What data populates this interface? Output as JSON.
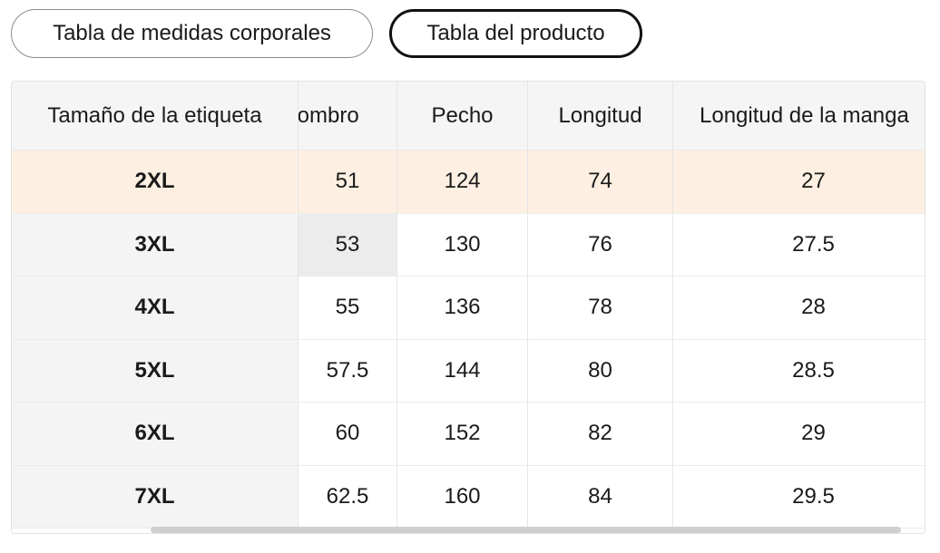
{
  "tabs": {
    "body_chart": "Tabla de medidas corporales",
    "product_chart": "Tabla del producto",
    "active": "product_chart"
  },
  "table": {
    "headers": [
      "Tamaño de la etiqueta",
      "Hombro",
      "Pecho",
      "Longitud",
      "Longitud de la manga"
    ],
    "header_visible": [
      "Tamaño de la etiqueta",
      "Iombro",
      "Pecho",
      "Longitud",
      "Longitud de la manga"
    ],
    "rows": [
      [
        "2XL",
        "51",
        "124",
        "74",
        "27"
      ],
      [
        "3XL",
        "53",
        "130",
        "76",
        "27.5"
      ],
      [
        "4XL",
        "55",
        "136",
        "78",
        "28"
      ],
      [
        "5XL",
        "57.5",
        "144",
        "80",
        "28.5"
      ],
      [
        "6XL",
        "60",
        "152",
        "82",
        "29"
      ],
      [
        "7XL",
        "62.5",
        "160",
        "84",
        "29.5"
      ]
    ],
    "highlighted_row_color": "#fdf0e2"
  }
}
